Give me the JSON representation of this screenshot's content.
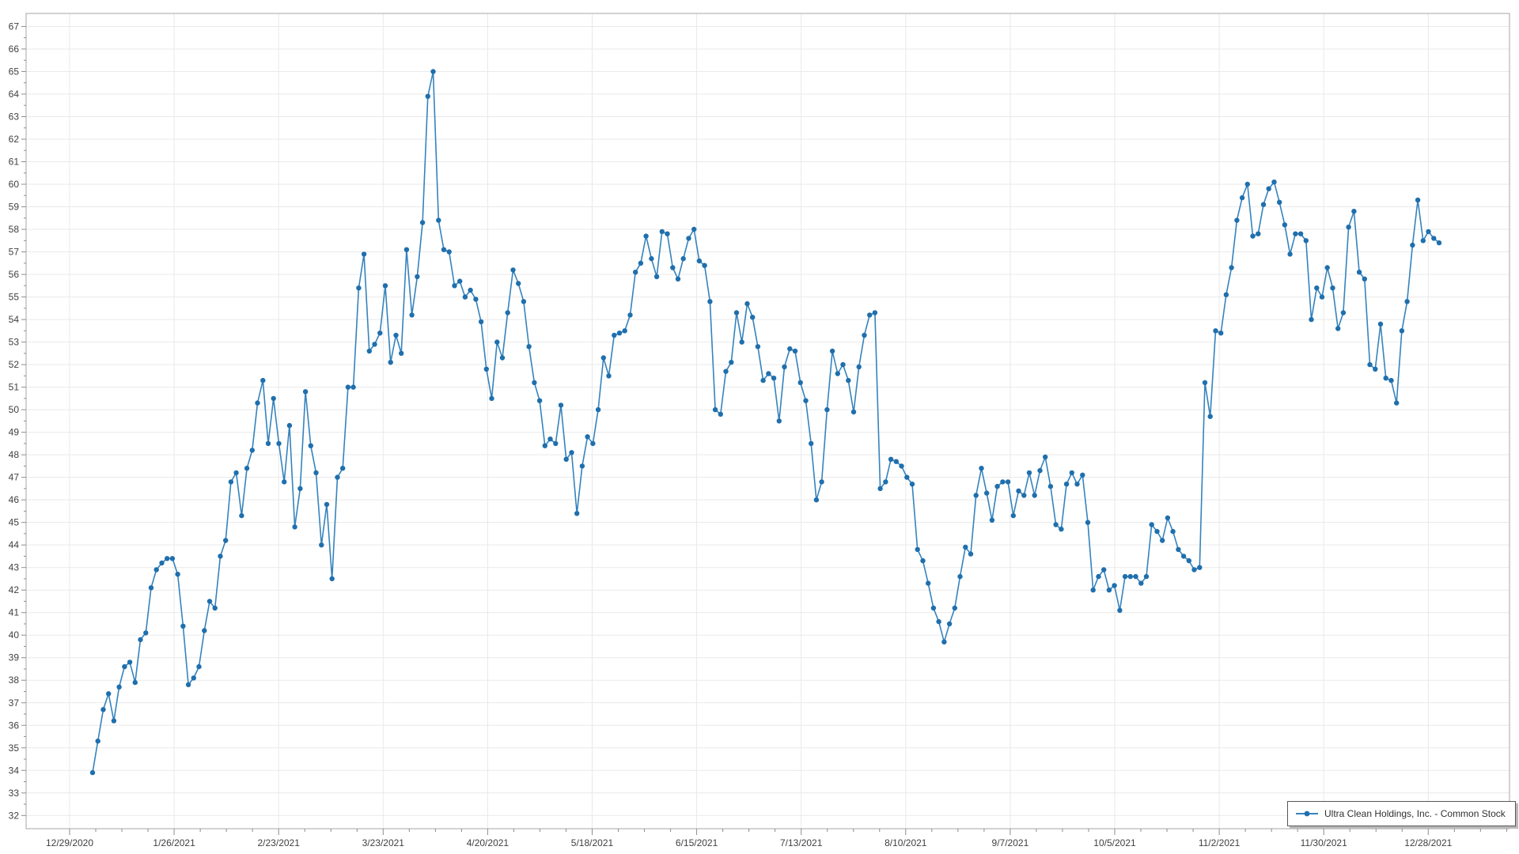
{
  "chart_data": {
    "type": "line",
    "title": "",
    "x_tick_labels": [
      "12/29/2020",
      "1/26/2021",
      "2/23/2021",
      "3/23/2021",
      "4/20/2021",
      "5/18/2021",
      "6/15/2021",
      "7/13/2021",
      "8/10/2021",
      "9/7/2021",
      "10/5/2021",
      "11/2/2021",
      "11/30/2021",
      "12/28/2021"
    ],
    "y_axis": {
      "min": 32,
      "max": 67,
      "step": 1
    },
    "grid": "on",
    "legend_position": "bottom-right",
    "colors": {
      "line": "#3583bd",
      "marker": "#1f6fad",
      "gridline": "#e9e9e9",
      "axis_border": "#a6a6a6",
      "tick": "#8c8c8c",
      "label_text": "#3f3f3f"
    },
    "series": [
      {
        "name": "Ultra Clean Holdings, Inc. - Common Stock",
        "color": "#2f7db9",
        "values": [
          33.9,
          35.3,
          36.7,
          37.4,
          36.2,
          37.7,
          38.6,
          38.8,
          37.9,
          39.8,
          40.1,
          42.1,
          42.9,
          43.2,
          43.4,
          43.4,
          42.7,
          40.4,
          37.8,
          38.1,
          38.6,
          40.2,
          41.5,
          41.2,
          43.5,
          44.2,
          46.8,
          47.2,
          45.3,
          47.4,
          48.2,
          50.3,
          51.3,
          48.5,
          50.5,
          48.5,
          46.8,
          49.3,
          44.8,
          46.5,
          50.8,
          48.4,
          47.2,
          44.0,
          45.8,
          42.5,
          47.0,
          47.4,
          51.0,
          51.0,
          55.4,
          56.9,
          52.6,
          52.9,
          53.4,
          55.5,
          52.1,
          53.3,
          52.5,
          57.1,
          54.2,
          55.9,
          58.3,
          63.9,
          65.0,
          58.4,
          57.1,
          57.0,
          55.5,
          55.7,
          55.0,
          55.3,
          54.9,
          53.9,
          51.8,
          50.5,
          53.0,
          52.3,
          54.3,
          56.2,
          55.6,
          54.8,
          52.8,
          51.2,
          50.4,
          48.4,
          48.7,
          48.5,
          50.2,
          47.8,
          48.1,
          45.4,
          47.5,
          48.8,
          48.5,
          50.0,
          52.3,
          51.5,
          53.3,
          53.4,
          53.5,
          54.2,
          56.1,
          56.5,
          57.7,
          56.7,
          55.9,
          57.9,
          57.8,
          56.3,
          55.8,
          56.7,
          57.6,
          58.0,
          56.6,
          56.4,
          54.8,
          50.0,
          49.8,
          51.7,
          52.1,
          54.3,
          53.0,
          54.7,
          54.1,
          52.8,
          51.3,
          51.6,
          51.4,
          49.5,
          51.9,
          52.7,
          52.6,
          51.2,
          50.4,
          48.5,
          46.0,
          46.8,
          50.0,
          52.6,
          51.6,
          52.0,
          51.3,
          49.9,
          51.9,
          53.3,
          54.2,
          54.3,
          46.5,
          46.8,
          47.8,
          47.7,
          47.5,
          47.0,
          46.7,
          43.8,
          43.3,
          42.3,
          41.2,
          40.6,
          39.7,
          40.5,
          41.2,
          42.6,
          43.9,
          43.6,
          46.2,
          47.4,
          46.3,
          45.1,
          46.6,
          46.8,
          46.8,
          45.3,
          46.4,
          46.2,
          47.2,
          46.2,
          47.3,
          47.9,
          46.6,
          44.9,
          44.7,
          46.7,
          47.2,
          46.7,
          47.1,
          45.0,
          42.0,
          42.6,
          42.9,
          42.0,
          42.2,
          41.1,
          42.6,
          42.6,
          42.6,
          42.3,
          42.6,
          44.9,
          44.6,
          44.2,
          45.2,
          44.6,
          43.8,
          43.5,
          43.3,
          42.9,
          43.0,
          51.2,
          49.7,
          53.5,
          53.4,
          55.1,
          56.3,
          58.4,
          59.4,
          60.0,
          57.7,
          57.8,
          59.1,
          59.8,
          60.1,
          59.2,
          58.2,
          56.9,
          57.8,
          57.8,
          57.5,
          54.0,
          55.4,
          55.0,
          56.3,
          55.4,
          53.6,
          54.3,
          58.1,
          58.8,
          56.1,
          55.8,
          52.0,
          51.8,
          53.8,
          51.4,
          51.3,
          50.3,
          53.5,
          54.8,
          57.3,
          59.3,
          57.5,
          57.9,
          57.6,
          57.4
        ]
      }
    ]
  },
  "legend": {
    "label": "Ultra Clean Holdings, Inc. - Common Stock"
  }
}
